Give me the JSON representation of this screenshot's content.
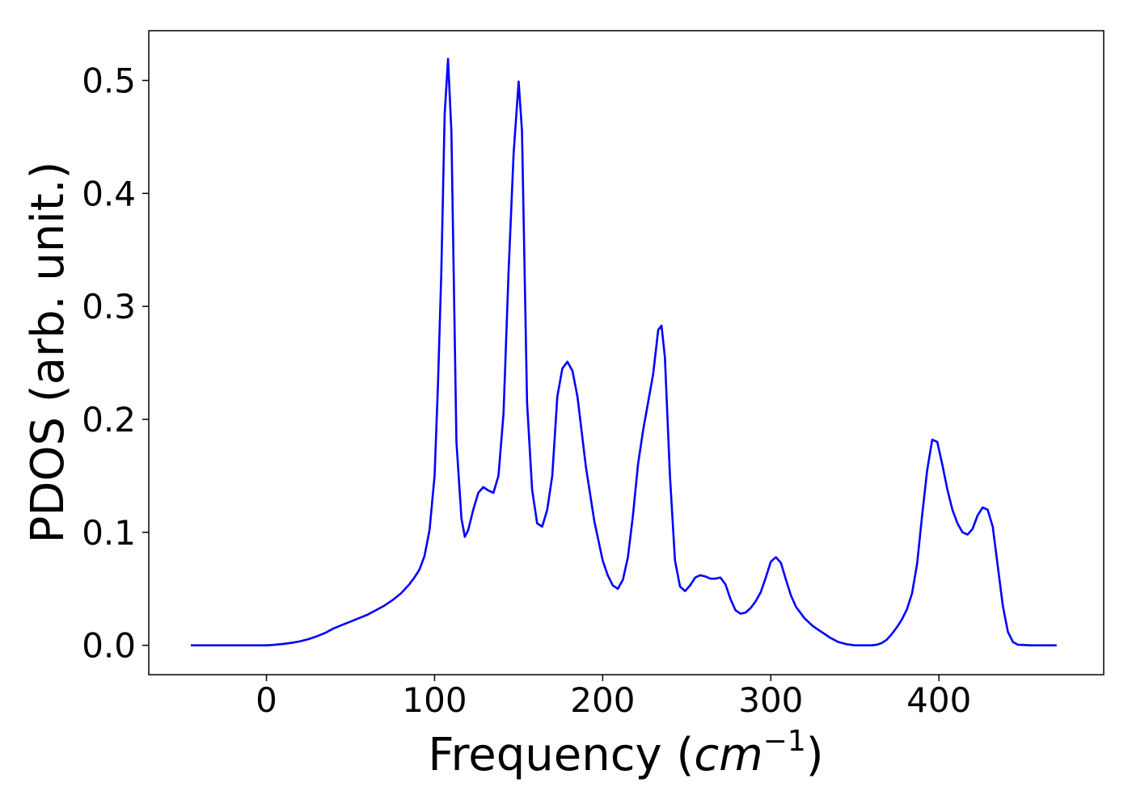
{
  "chart_data": {
    "type": "line",
    "title": "",
    "xlabel_main": "Frequency (",
    "xlabel_math": "cm",
    "xlabel_sup": "−1",
    "xlabel_close": ")",
    "ylabel": "PDOS (arb. unit.)",
    "xlim": [
      -70,
      498
    ],
    "ylim": [
      -0.026,
      0.544
    ],
    "x_ticks": [
      0,
      100,
      200,
      300,
      400
    ],
    "y_ticks": [
      0.0,
      0.1,
      0.2,
      0.3,
      0.4,
      0.5
    ],
    "y_tick_labels": [
      "0.0",
      "0.1",
      "0.2",
      "0.3",
      "0.4",
      "0.5"
    ],
    "grid": false,
    "series": [
      {
        "color": "#0000ff",
        "x": [
          -45,
          -30,
          -15,
          0,
          5,
          10,
          15,
          20,
          25,
          30,
          35,
          40,
          45,
          50,
          55,
          60,
          65,
          70,
          75,
          80,
          85,
          88,
          91,
          94,
          97,
          100,
          102,
          104,
          106,
          108,
          110,
          113,
          116,
          118,
          120,
          123,
          126,
          129,
          132,
          135,
          138,
          141,
          144,
          147,
          150,
          152,
          155,
          158,
          161,
          164,
          167,
          170,
          173,
          176,
          179,
          182,
          185,
          190,
          195,
          200,
          203,
          206,
          209,
          212,
          215,
          218,
          221,
          224,
          227,
          230,
          233,
          235,
          237,
          240,
          243,
          246,
          249,
          252,
          255,
          258,
          261,
          264,
          267,
          270,
          273,
          276,
          279,
          282,
          285,
          288,
          291,
          294,
          297,
          300,
          303,
          306,
          309,
          312,
          315,
          320,
          325,
          330,
          335,
          340,
          345,
          350,
          355,
          360,
          363,
          366,
          369,
          372,
          375,
          378,
          381,
          384,
          387,
          390,
          393,
          396,
          399,
          402,
          405,
          408,
          411,
          414,
          417,
          420,
          423,
          426,
          429,
          432,
          435,
          438,
          441,
          444,
          447,
          455,
          470
        ],
        "y": [
          0.0,
          0.0,
          0.0,
          0.0,
          0.0005,
          0.0012,
          0.0022,
          0.0035,
          0.0055,
          0.008,
          0.011,
          0.015,
          0.018,
          0.021,
          0.024,
          0.027,
          0.031,
          0.035,
          0.04,
          0.046,
          0.054,
          0.06,
          0.067,
          0.079,
          0.102,
          0.15,
          0.23,
          0.33,
          0.47,
          0.519,
          0.455,
          0.18,
          0.112,
          0.096,
          0.102,
          0.12,
          0.135,
          0.14,
          0.137,
          0.135,
          0.15,
          0.205,
          0.33,
          0.435,
          0.499,
          0.455,
          0.215,
          0.138,
          0.108,
          0.105,
          0.12,
          0.15,
          0.22,
          0.245,
          0.251,
          0.243,
          0.22,
          0.158,
          0.11,
          0.075,
          0.062,
          0.053,
          0.05,
          0.058,
          0.078,
          0.115,
          0.16,
          0.19,
          0.215,
          0.24,
          0.279,
          0.283,
          0.255,
          0.15,
          0.075,
          0.052,
          0.048,
          0.053,
          0.06,
          0.062,
          0.061,
          0.059,
          0.059,
          0.06,
          0.054,
          0.041,
          0.031,
          0.028,
          0.029,
          0.033,
          0.039,
          0.047,
          0.06,
          0.074,
          0.078,
          0.073,
          0.058,
          0.044,
          0.034,
          0.024,
          0.017,
          0.012,
          0.007,
          0.003,
          0.001,
          0.0,
          0.0,
          0.0,
          0.0005,
          0.002,
          0.005,
          0.01,
          0.016,
          0.023,
          0.032,
          0.046,
          0.072,
          0.115,
          0.155,
          0.182,
          0.18,
          0.16,
          0.138,
          0.12,
          0.108,
          0.1,
          0.098,
          0.103,
          0.115,
          0.122,
          0.12,
          0.105,
          0.07,
          0.035,
          0.012,
          0.003,
          0.0005,
          0.0,
          0.0
        ]
      }
    ]
  }
}
